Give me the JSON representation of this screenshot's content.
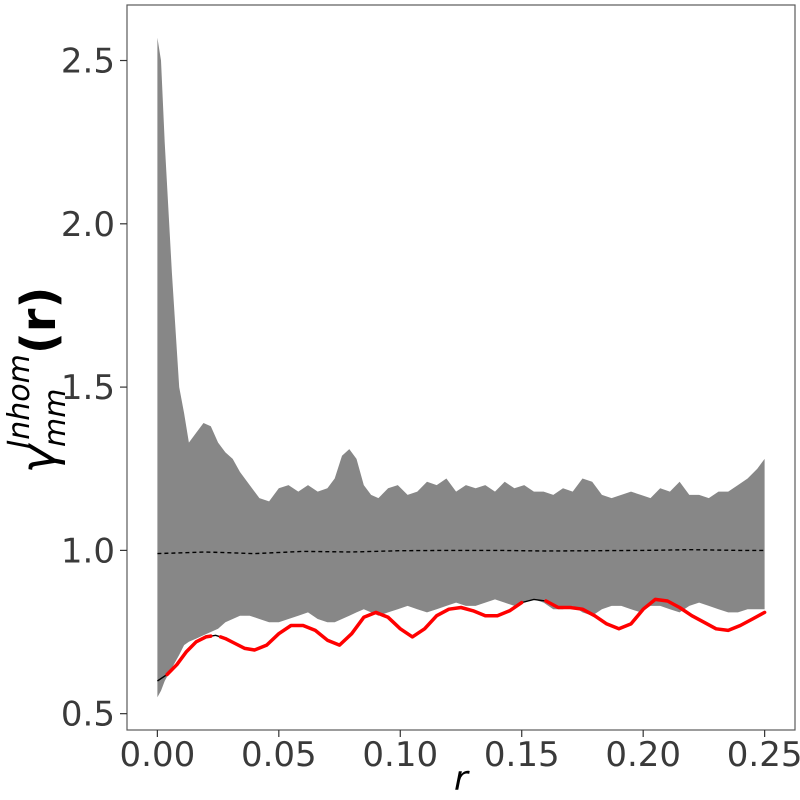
{
  "chart_data": {
    "type": "line",
    "title": "",
    "xlabel": "r",
    "ylabel": {
      "base": "γ",
      "superscript": "Inhom",
      "subscript": "mm",
      "suffix": "(r)"
    },
    "xlim": [
      -0.0125,
      0.2625
    ],
    "ylim": [
      0.45,
      2.67
    ],
    "x_ticks": [
      0.0,
      0.05,
      0.1,
      0.15,
      0.2,
      0.25
    ],
    "x_tick_labels": [
      "0.00",
      "0.05",
      "0.10",
      "0.15",
      "0.20",
      "0.25"
    ],
    "y_ticks": [
      0.5,
      1.0,
      1.5,
      2.0,
      2.5
    ],
    "y_tick_labels": [
      "0.5",
      "1.0",
      "1.5",
      "2.0",
      "2.5"
    ],
    "grid": false,
    "legend": "none",
    "colors": {
      "envelope": "#878787",
      "theoretical": "#000000",
      "observed": "#000000",
      "highlight": "#ff0000",
      "frame": "#595959"
    },
    "envelope": {
      "x": [
        0.0,
        0.0015,
        0.003,
        0.006,
        0.009,
        0.011,
        0.013,
        0.016,
        0.019,
        0.022,
        0.025,
        0.028,
        0.031,
        0.034,
        0.038,
        0.042,
        0.046,
        0.05,
        0.054,
        0.058,
        0.062,
        0.066,
        0.07,
        0.073,
        0.076,
        0.079,
        0.082,
        0.085,
        0.088,
        0.091,
        0.095,
        0.099,
        0.103,
        0.107,
        0.111,
        0.115,
        0.119,
        0.123,
        0.127,
        0.131,
        0.135,
        0.139,
        0.143,
        0.147,
        0.151,
        0.155,
        0.159,
        0.163,
        0.167,
        0.171,
        0.175,
        0.179,
        0.183,
        0.187,
        0.191,
        0.195,
        0.199,
        0.203,
        0.207,
        0.211,
        0.215,
        0.219,
        0.223,
        0.227,
        0.231,
        0.235,
        0.239,
        0.243,
        0.247,
        0.25
      ],
      "upper": [
        2.57,
        2.5,
        2.25,
        1.85,
        1.5,
        1.42,
        1.33,
        1.36,
        1.39,
        1.38,
        1.33,
        1.3,
        1.28,
        1.24,
        1.2,
        1.16,
        1.15,
        1.19,
        1.2,
        1.18,
        1.2,
        1.18,
        1.19,
        1.22,
        1.29,
        1.31,
        1.28,
        1.2,
        1.17,
        1.16,
        1.19,
        1.2,
        1.17,
        1.18,
        1.21,
        1.2,
        1.22,
        1.18,
        1.2,
        1.19,
        1.2,
        1.18,
        1.21,
        1.19,
        1.2,
        1.18,
        1.18,
        1.17,
        1.19,
        1.18,
        1.22,
        1.21,
        1.17,
        1.16,
        1.17,
        1.18,
        1.17,
        1.16,
        1.19,
        1.18,
        1.21,
        1.17,
        1.17,
        1.16,
        1.18,
        1.18,
        1.2,
        1.22,
        1.25,
        1.28
      ],
      "lower": [
        0.55,
        0.57,
        0.6,
        0.64,
        0.68,
        0.71,
        0.72,
        0.73,
        0.74,
        0.75,
        0.76,
        0.78,
        0.79,
        0.8,
        0.8,
        0.79,
        0.78,
        0.78,
        0.79,
        0.8,
        0.81,
        0.79,
        0.78,
        0.78,
        0.79,
        0.8,
        0.81,
        0.82,
        0.81,
        0.8,
        0.81,
        0.82,
        0.83,
        0.82,
        0.81,
        0.82,
        0.83,
        0.84,
        0.83,
        0.83,
        0.84,
        0.85,
        0.84,
        0.83,
        0.84,
        0.85,
        0.84,
        0.82,
        0.82,
        0.83,
        0.81,
        0.8,
        0.82,
        0.83,
        0.83,
        0.82,
        0.81,
        0.83,
        0.83,
        0.82,
        0.81,
        0.83,
        0.84,
        0.83,
        0.82,
        0.81,
        0.81,
        0.82,
        0.82,
        0.82
      ]
    },
    "series": [
      {
        "style": "dashed",
        "x": [
          0.0,
          0.02,
          0.04,
          0.06,
          0.08,
          0.1,
          0.12,
          0.14,
          0.16,
          0.18,
          0.2,
          0.22,
          0.24,
          0.25
        ],
        "y": [
          0.99,
          0.995,
          0.99,
          0.997,
          0.995,
          0.999,
          1.0,
          1.0,
          0.998,
          0.999,
          1.0,
          1.002,
          1.0,
          1.0
        ]
      },
      {
        "style": "solid",
        "x": [
          0.0,
          0.004,
          0.008,
          0.012,
          0.016,
          0.02,
          0.024,
          0.028,
          0.032,
          0.036,
          0.04,
          0.045,
          0.05,
          0.055,
          0.06,
          0.065,
          0.07,
          0.075,
          0.08,
          0.085,
          0.09,
          0.095,
          0.1,
          0.105,
          0.11,
          0.115,
          0.12,
          0.125,
          0.13,
          0.135,
          0.14,
          0.145,
          0.15,
          0.155,
          0.16,
          0.165,
          0.17,
          0.175,
          0.18,
          0.185,
          0.19,
          0.195,
          0.2,
          0.205,
          0.21,
          0.215,
          0.22,
          0.225,
          0.23,
          0.235,
          0.24,
          0.245,
          0.25
        ],
        "y": [
          0.6,
          0.62,
          0.65,
          0.69,
          0.72,
          0.735,
          0.74,
          0.73,
          0.715,
          0.7,
          0.695,
          0.71,
          0.745,
          0.77,
          0.77,
          0.755,
          0.725,
          0.71,
          0.745,
          0.795,
          0.81,
          0.795,
          0.76,
          0.735,
          0.76,
          0.8,
          0.82,
          0.825,
          0.815,
          0.8,
          0.8,
          0.815,
          0.84,
          0.85,
          0.845,
          0.825,
          0.825,
          0.82,
          0.8,
          0.775,
          0.76,
          0.775,
          0.82,
          0.85,
          0.845,
          0.825,
          0.8,
          0.78,
          0.76,
          0.755,
          0.77,
          0.79,
          0.81
        ]
      }
    ],
    "highlight_segments": [
      {
        "x": [
          0.004,
          0.008,
          0.012,
          0.016,
          0.02,
          0.022
        ]
      },
      {
        "x": [
          0.026,
          0.028,
          0.032,
          0.036,
          0.04,
          0.045,
          0.05,
          0.055,
          0.06,
          0.065,
          0.07,
          0.075,
          0.08,
          0.085,
          0.09,
          0.095,
          0.1,
          0.105,
          0.11,
          0.115,
          0.12,
          0.125,
          0.13,
          0.135,
          0.14,
          0.145,
          0.15
        ]
      },
      {
        "x": [
          0.16,
          0.165,
          0.17,
          0.175,
          0.18,
          0.185,
          0.19,
          0.195,
          0.2,
          0.205,
          0.21,
          0.215,
          0.22,
          0.225,
          0.23,
          0.235,
          0.24,
          0.245,
          0.25
        ]
      }
    ]
  }
}
